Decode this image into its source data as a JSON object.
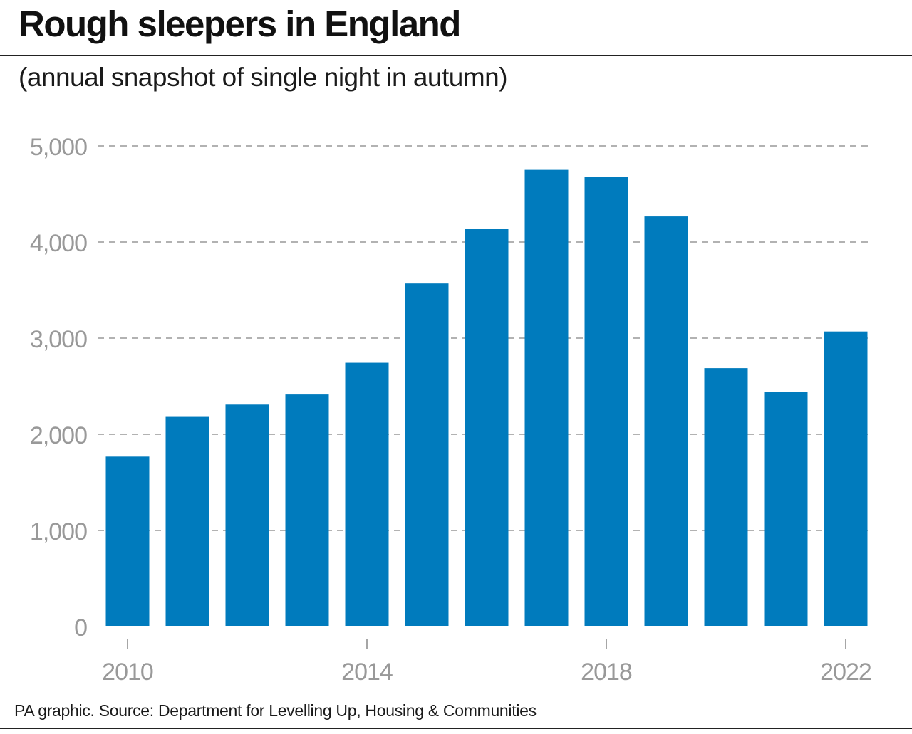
{
  "title": "Rough sleepers in England",
  "subtitle": "(annual snapshot of single night in autumn)",
  "source": "PA graphic. Source: Department for Levelling Up, Housing & Communities",
  "colors": {
    "bar": "#007bbd",
    "grid": "#999999",
    "tick_text": "#999999"
  },
  "chart_data": {
    "type": "bar",
    "title": "Rough sleepers in England",
    "subtitle": "(annual snapshot of single night in autumn)",
    "categories": [
      "2010",
      "2011",
      "2012",
      "2013",
      "2014",
      "2015",
      "2016",
      "2017",
      "2018",
      "2019",
      "2020",
      "2021",
      "2022"
    ],
    "values": [
      1768,
      2181,
      2309,
      2414,
      2744,
      3569,
      4134,
      4751,
      4677,
      4266,
      2688,
      2440,
      3069
    ],
    "xlabel": "",
    "ylabel": "",
    "ylim": [
      0,
      5000
    ],
    "yticks": [
      0,
      1000,
      2000,
      3000,
      4000,
      5000
    ],
    "ytick_labels": [
      "0",
      "1,000",
      "2,000",
      "3,000",
      "4,000",
      "5,000"
    ],
    "xtick_labels": [
      "2010",
      "2014",
      "2018",
      "2022"
    ],
    "grid": true,
    "grid_style": "dashed",
    "legend": false
  }
}
